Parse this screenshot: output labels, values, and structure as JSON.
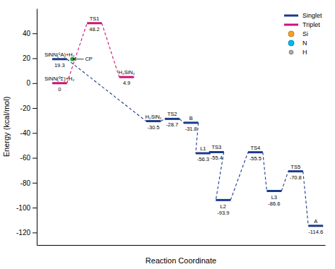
{
  "chart_data": {
    "type": "levels",
    "x_label": "Reaction Coordinate",
    "y_label": "Energy (kcal/mol)",
    "xlim": [
      -0.5,
      21
    ],
    "xticks": [],
    "ylim": [
      -130,
      60
    ],
    "yticks": [
      -120,
      -100,
      -80,
      -60,
      -40,
      -20,
      0,
      20,
      40
    ],
    "tick_labels": "y",
    "grid": false,
    "legend": "upper right",
    "data_labels": true,
    "series": [
      {
        "name": "Singlet",
        "color": "#1a3a8a",
        "line_style": "dashed",
        "labels": [
          "SiNN(¹A)+H₂",
          "H₂SiN₂",
          "TS2",
          "B",
          "L1",
          "TS3",
          "L2",
          "TS4",
          "L3",
          "TS5",
          "A"
        ],
        "x": [
          1.2,
          8.2,
          9.6,
          11.0,
          11.9,
          12.9,
          13.4,
          15.8,
          17.2,
          18.8,
          20.3
        ],
        "values": [
          19.3,
          -30.5,
          -28.7,
          -31.8,
          -56.3,
          -55.4,
          -93.9,
          -55.5,
          -86.6,
          -70.8,
          -114.6
        ]
      },
      {
        "name": "Triplet",
        "color": "#cc1177",
        "line_style": "dashed",
        "labels": [
          "SiNN(³Σ)+H₂",
          "TS1",
          "H₂SiN₂"
        ],
        "x": [
          1.2,
          3.8,
          6.2
        ],
        "values": [
          0,
          48.2,
          4.9
        ]
      },
      {
        "name": "Si",
        "color": "#f5a020",
        "marker": "circle",
        "x": [],
        "values": []
      },
      {
        "name": "N",
        "color": "#00b8f0",
        "marker": "circle",
        "x": [],
        "values": []
      },
      {
        "name": "H",
        "color": "#aaaaaa",
        "marker": "circle",
        "x": [],
        "values": []
      }
    ],
    "annotations": [
      {
        "text": "CP",
        "x": 2.15,
        "y": 19.3,
        "color": "#2ca02c"
      }
    ]
  }
}
